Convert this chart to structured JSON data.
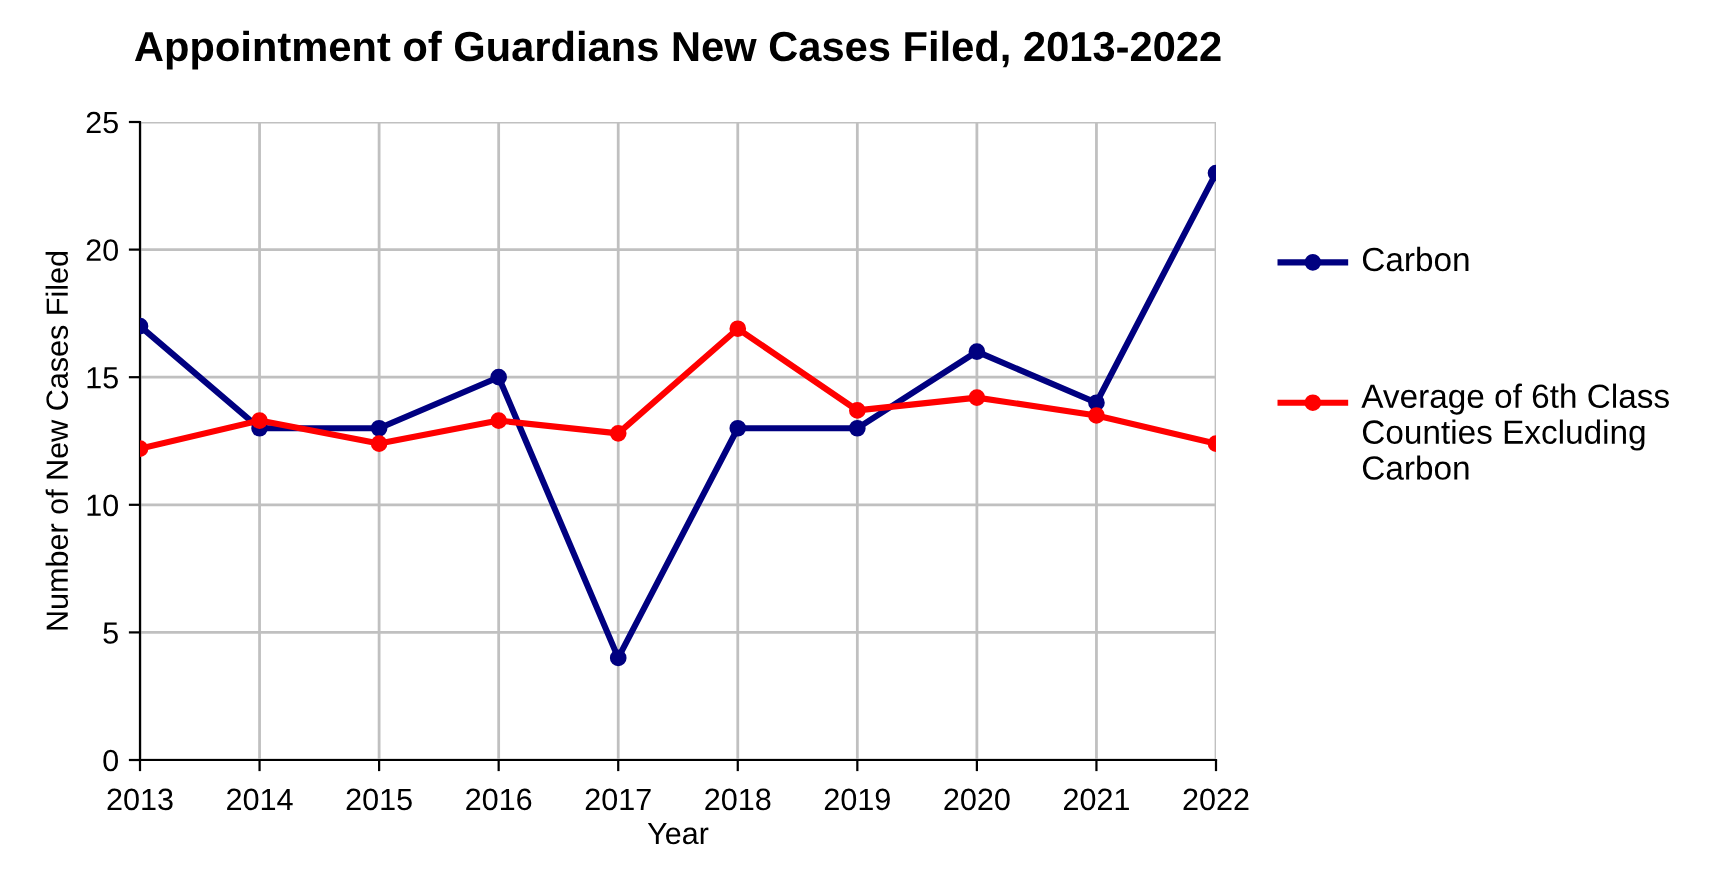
{
  "chart_data": {
    "type": "line",
    "title": "Appointment of Guardians New Cases Filed, 2013-2022",
    "xlabel": "Year",
    "ylabel": "Number of New Cases Filed",
    "x": [
      2013,
      2014,
      2015,
      2016,
      2017,
      2018,
      2019,
      2020,
      2021,
      2022
    ],
    "series": [
      {
        "name": "Carbon",
        "color": "#000080",
        "values": [
          17,
          13,
          13,
          15,
          4,
          13,
          13,
          16,
          14,
          23
        ]
      },
      {
        "name": "Average of 6th Class Counties Excluding Carbon",
        "color": "#ff0000",
        "values": [
          12.2,
          13.3,
          12.4,
          13.3,
          12.8,
          16.9,
          13.7,
          14.2,
          13.5,
          12.4
        ]
      }
    ],
    "xlim": [
      2013,
      2022
    ],
    "xticks": [
      2013,
      2014,
      2015,
      2016,
      2017,
      2018,
      2019,
      2020,
      2021,
      2022
    ],
    "ylim": [
      0,
      25
    ],
    "yticks": [
      0,
      5,
      10,
      15,
      20,
      25
    ],
    "grid": true,
    "legend": "right",
    "marker": "circle",
    "line_style": "solid"
  }
}
